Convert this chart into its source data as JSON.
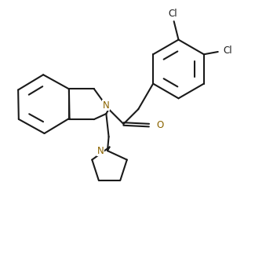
{
  "background": "#ffffff",
  "lc": "#1a1a1a",
  "ac": "#8B6400",
  "lw": 1.5,
  "fs": 8.5,
  "figsize": [
    3.25,
    3.53
  ],
  "dpi": 100,
  "xlim": [
    0,
    10
  ],
  "ylim": [
    0,
    10.85
  ]
}
